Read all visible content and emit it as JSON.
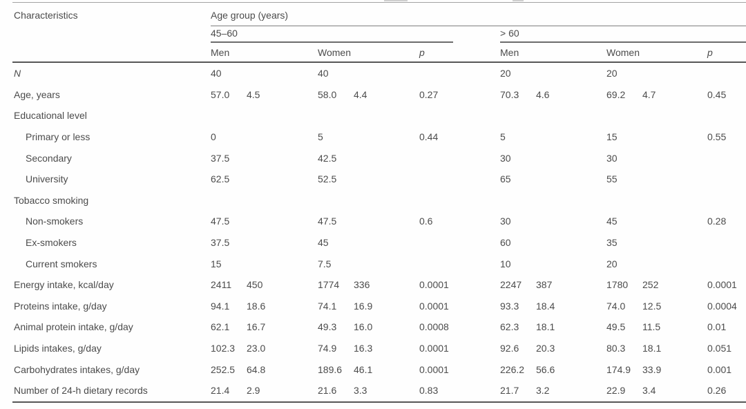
{
  "colors": {
    "text": "#4b4b4b",
    "rule_light": "#a3a3a3",
    "rule_mid": "#7e7e7e",
    "rule_dark": "#565656"
  },
  "table": {
    "header": {
      "characteristics": "Characteristics",
      "age_group": "Age group (years)",
      "group1": "45–60",
      "group2": "> 60",
      "men": "Men",
      "women": "Women",
      "p": "p"
    },
    "rows": [
      {
        "label": "N",
        "italic": true,
        "indent": 0,
        "cells": [
          [
            "40"
          ],
          [
            "40"
          ],
          [],
          [
            "20"
          ],
          [
            "20"
          ],
          []
        ]
      },
      {
        "label": "Age, years",
        "indent": 0,
        "cells": [
          [
            "57.0",
            "4.5"
          ],
          [
            "58.0",
            "4.4"
          ],
          [
            "0.27"
          ],
          [
            "70.3",
            "4.6"
          ],
          [
            "69.2",
            "4.7"
          ],
          [
            "0.45"
          ]
        ]
      },
      {
        "label": "Educational level",
        "indent": 0,
        "cells": [
          [],
          [],
          [],
          [],
          [],
          []
        ]
      },
      {
        "label": "Primary or less",
        "indent": 1,
        "cells": [
          [
            "0"
          ],
          [
            "5"
          ],
          [
            "0.44"
          ],
          [
            "5"
          ],
          [
            "15"
          ],
          [
            "0.55"
          ]
        ]
      },
      {
        "label": "Secondary",
        "indent": 1,
        "cells": [
          [
            "37.5"
          ],
          [
            "42.5"
          ],
          [],
          [
            "30"
          ],
          [
            "30"
          ],
          []
        ]
      },
      {
        "label": "University",
        "indent": 1,
        "cells": [
          [
            "62.5"
          ],
          [
            "52.5"
          ],
          [],
          [
            "65"
          ],
          [
            "55"
          ],
          []
        ]
      },
      {
        "label": "Tobacco smoking",
        "indent": 0,
        "cells": [
          [],
          [],
          [],
          [],
          [],
          []
        ]
      },
      {
        "label": "Non-smokers",
        "indent": 1,
        "cells": [
          [
            "47.5"
          ],
          [
            "47.5"
          ],
          [
            "0.6"
          ],
          [
            "30"
          ],
          [
            "45"
          ],
          [
            "0.28"
          ]
        ]
      },
      {
        "label": "Ex-smokers",
        "indent": 1,
        "cells": [
          [
            "37.5"
          ],
          [
            "45"
          ],
          [],
          [
            "60"
          ],
          [
            "35"
          ],
          []
        ]
      },
      {
        "label": "Current smokers",
        "indent": 1,
        "cells": [
          [
            "15"
          ],
          [
            "7.5"
          ],
          [],
          [
            "10"
          ],
          [
            "20"
          ],
          []
        ]
      },
      {
        "label": "Energy intake, kcal/day",
        "indent": 0,
        "cells": [
          [
            "2411",
            "450"
          ],
          [
            "1774",
            "336"
          ],
          [
            "0.0001"
          ],
          [
            "2247",
            "387"
          ],
          [
            "1780",
            "252"
          ],
          [
            "0.0001"
          ]
        ]
      },
      {
        "label": "Proteins intake, g/day",
        "indent": 0,
        "cells": [
          [
            "94.1",
            "18.6"
          ],
          [
            "74.1",
            "16.9"
          ],
          [
            "0.0001"
          ],
          [
            "93.3",
            "18.4"
          ],
          [
            "74.0",
            "12.5"
          ],
          [
            "0.0004"
          ]
        ]
      },
      {
        "label": "Animal protein intake, g/day",
        "indent": 0,
        "cells": [
          [
            "62.1",
            "16.7"
          ],
          [
            "49.3",
            "16.0"
          ],
          [
            "0.0008"
          ],
          [
            "62.3",
            "18.1"
          ],
          [
            "49.5",
            "11.5"
          ],
          [
            "0.01"
          ]
        ]
      },
      {
        "label": "Lipids intakes, g/day",
        "indent": 0,
        "cells": [
          [
            "102.3",
            "23.0"
          ],
          [
            "74.9",
            "16.3"
          ],
          [
            "0.0001"
          ],
          [
            "92.6",
            "20.3"
          ],
          [
            "80.3",
            "18.1"
          ],
          [
            "0.051"
          ]
        ]
      },
      {
        "label": "Carbohydrates intakes, g/day",
        "indent": 0,
        "cells": [
          [
            "252.5",
            "64.8"
          ],
          [
            "189.6",
            "46.1"
          ],
          [
            "0.0001"
          ],
          [
            "226.2",
            "56.6"
          ],
          [
            "174.9",
            "33.9"
          ],
          [
            "0.001"
          ]
        ]
      },
      {
        "label": "Number of 24-h dietary records",
        "indent": 0,
        "cells": [
          [
            "21.4",
            "2.9"
          ],
          [
            "21.6",
            "3.3"
          ],
          [
            "0.83"
          ],
          [
            "21.7",
            "3.2"
          ],
          [
            "22.9",
            "3.4"
          ],
          [
            "0.26"
          ]
        ]
      }
    ]
  }
}
